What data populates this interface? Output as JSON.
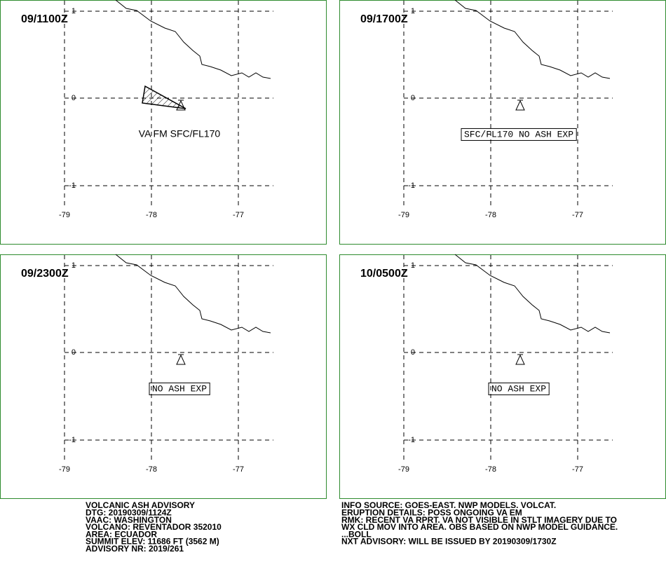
{
  "axes": {
    "lon_labels": [
      "-79",
      "-78",
      "-77"
    ],
    "lat_labels": [
      "1",
      "0",
      "-1"
    ]
  },
  "panels": [
    {
      "time": "09/1100Z",
      "note": "VA FM SFC/FL170"
    },
    {
      "time": "09/1700Z",
      "note": "SFC/FL170 NO ASH EXP"
    },
    {
      "time": "09/2300Z",
      "note": "NO ASH EXP"
    },
    {
      "time": "10/0500Z",
      "note": "NO ASH EXP"
    }
  ],
  "footer": {
    "left": [
      "VOLCANIC ASH ADVISORY",
      "DTG: 20190309/1124Z",
      "VAAC: WASHINGTON",
      "VOLCANO: REVENTADOR 352010",
      "AREA: ECUADOR",
      "SUMMIT ELEV: 11686 FT (3562 M)",
      "ADVISORY NR: 2019/261"
    ],
    "right": [
      "INFO SOURCE: GOES-EAST. NWP MODELS. VOLCAT.",
      "ERUPTION DETAILS: POSS ONGOING VA EM",
      "RMK: RECENT VA RPRT. VA NOT VISIBLE IN STLT IMAGERY DUE TO",
      "WX CLD MOV INTO AREA. OBS BASED ON NWP MODEL GUIDANCE.",
      "...BOLL",
      "NXT ADVISORY: WILL BE ISSUED BY 20190309/1730Z"
    ]
  }
}
